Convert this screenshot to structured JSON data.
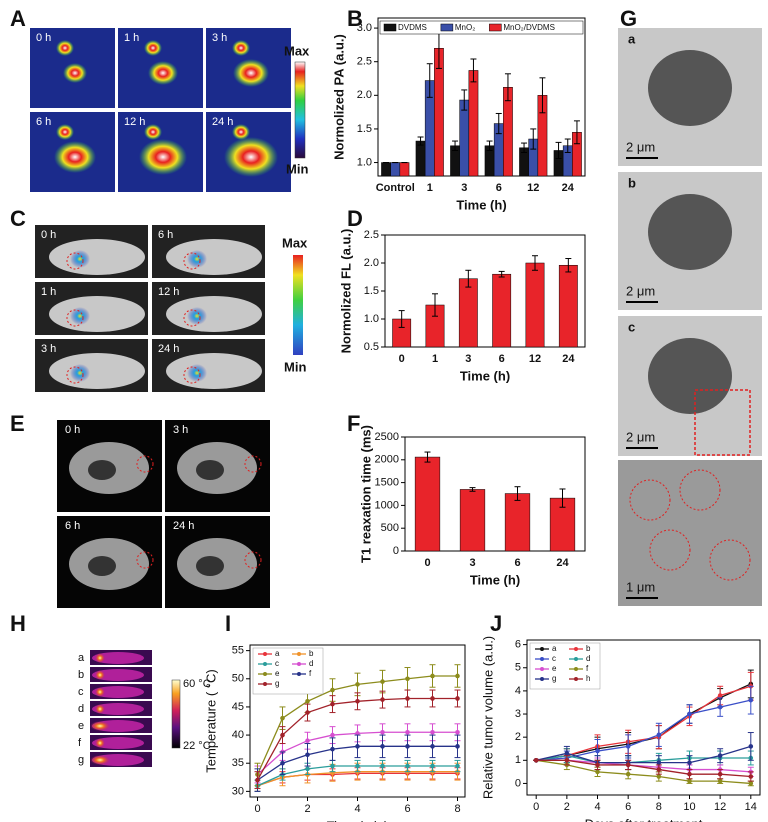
{
  "chart_data": [
    {
      "type": "bar",
      "categories": [
        "Control",
        "1",
        "3",
        "6",
        "12",
        "24"
      ],
      "series": [
        {
          "name": "DVDMS",
          "color": "#111111",
          "values": [
            1,
            1.32,
            1.25,
            1.25,
            1.22,
            1.18
          ],
          "errors": [
            0,
            0.06,
            0.07,
            0.07,
            0.07,
            0.12
          ]
        },
        {
          "name": "MnO₂",
          "color": "#3a4fa8",
          "values": [
            1,
            2.22,
            1.93,
            1.58,
            1.35,
            1.25
          ],
          "errors": [
            0,
            0.25,
            0.15,
            0.15,
            0.15,
            0.1
          ]
        },
        {
          "name": "MnO₂/DVDMS",
          "color": "#e8242a",
          "values": [
            1,
            2.7,
            2.37,
            2.12,
            2.0,
            1.45
          ],
          "errors": [
            0,
            0.3,
            0.17,
            0.2,
            0.26,
            0.17
          ]
        }
      ],
      "ylim": [
        0.8,
        3.15
      ],
      "yticks": [
        {
          "value": 1,
          "label": "1.0"
        },
        1.5,
        {
          "value": 2,
          "label": "2.0"
        },
        2.5,
        {
          "value": 3,
          "label": "3.0"
        }
      ],
      "xlabel": "Time (h)",
      "ylabel": "Normolized PA (a.u.)",
      "legend": "top"
    },
    {
      "type": "bar",
      "categories": [
        "0",
        "1",
        "3",
        "6",
        "12",
        "24"
      ],
      "series": [
        {
          "color": "#e8242a",
          "values": [
            1.0,
            1.25,
            1.72,
            1.8,
            2.0,
            1.96
          ],
          "errors": [
            0.15,
            0.2,
            0.15,
            0.05,
            0.13,
            0.12
          ]
        }
      ],
      "ylim": [
        0.5,
        2.5
      ],
      "yticks": [
        0.5,
        {
          "value": 1,
          "label": "1.0"
        },
        1.5,
        {
          "value": 2,
          "label": "2.0"
        },
        2.5
      ],
      "xlabel": "Time (h)",
      "ylabel": "Normolized FL (a.u.)"
    },
    {
      "type": "bar",
      "categories": [
        "0",
        "3",
        "6",
        "24"
      ],
      "series": [
        {
          "color": "#e8242a",
          "values": [
            2060,
            1350,
            1260,
            1160
          ],
          "errors": [
            110,
            40,
            150,
            200
          ]
        }
      ],
      "ylim": [
        0,
        2500
      ],
      "yticks": [
        0,
        500,
        1000,
        1500,
        2000,
        2500
      ],
      "xlabel": "Time (h)",
      "ylabel": "T1 reaxation time (ms)"
    },
    {
      "type": "line",
      "x": [
        0,
        1,
        2,
        3,
        4,
        5,
        6,
        7,
        8
      ],
      "xlim": [
        -0.3,
        8.3
      ],
      "xticks": [
        0,
        2,
        4,
        6,
        8
      ],
      "ylim": [
        29,
        56
      ],
      "yticks": [
        30,
        35,
        40,
        45,
        50,
        55
      ],
      "xlabel": "Time (min)",
      "ylabel": "Temperature ( °C)",
      "legend": "upper left",
      "series": [
        {
          "name": "a",
          "color": "#e8333a",
          "values": [
            31,
            32.5,
            33,
            33,
            33.2,
            33.2,
            33.2,
            33.2,
            33.2
          ],
          "errors": [
            1,
            1,
            1,
            1,
            1,
            1,
            1,
            1,
            1
          ]
        },
        {
          "name": "b",
          "color": "#f0932b",
          "values": [
            31,
            32.5,
            33,
            33.3,
            33.5,
            33.5,
            33.5,
            33.5,
            33.5
          ],
          "errors": [
            1,
            1.5,
            1.5,
            1.5,
            1.5,
            1.5,
            1.5,
            1.5,
            1.5
          ]
        },
        {
          "name": "c",
          "color": "#2a9d9b",
          "values": [
            31,
            33,
            34,
            34.5,
            34.5,
            34.5,
            34.5,
            34.5,
            34.5
          ],
          "errors": [
            1,
            1,
            1,
            1,
            1,
            1,
            1,
            1,
            1
          ]
        },
        {
          "name": "d",
          "color": "#d64fd0",
          "values": [
            33,
            37,
            39,
            40,
            40.3,
            40.5,
            40.5,
            40.5,
            40.5
          ],
          "errors": [
            1.5,
            1.5,
            1.5,
            1.5,
            1.5,
            1.5,
            1.5,
            1.5,
            1.5
          ]
        },
        {
          "name": "e",
          "color": "#8c8c1c",
          "values": [
            33,
            43,
            46,
            48,
            49,
            49.5,
            50,
            50.5,
            50.5
          ],
          "errors": [
            2,
            2,
            2,
            2,
            2,
            2,
            2,
            2,
            2
          ]
        },
        {
          "name": "f",
          "color": "#27338a",
          "values": [
            32,
            35,
            36.5,
            37.5,
            38,
            38,
            38,
            38,
            38
          ],
          "errors": [
            2,
            2,
            2,
            2,
            2,
            2,
            2,
            2,
            2
          ]
        },
        {
          "name": "g",
          "color": "#a2222a",
          "values": [
            32,
            40,
            44,
            45.5,
            46,
            46.3,
            46.5,
            46.5,
            46.5
          ],
          "errors": [
            1.5,
            1.5,
            1.5,
            1.5,
            1.5,
            1.5,
            1.5,
            1.5,
            1.5
          ]
        }
      ]
    },
    {
      "type": "line",
      "x": [
        0,
        2,
        4,
        6,
        8,
        10,
        12,
        14
      ],
      "xlim": [
        -0.6,
        14.6
      ],
      "xticks": [
        0,
        2,
        4,
        6,
        8,
        10,
        12,
        14
      ],
      "ylim": [
        -0.5,
        6.2
      ],
      "yticks": [
        0,
        1,
        2,
        3,
        4,
        5,
        6
      ],
      "xlabel": "Days after treatment",
      "ylabel": "Relative tumor volume (a.u.)",
      "legend": "upper left",
      "series": [
        {
          "name": "a",
          "color": "#111111",
          "values": [
            1,
            1.2,
            1.5,
            1.7,
            2.0,
            3.0,
            3.7,
            4.3
          ],
          "errors": [
            0,
            0.3,
            0.5,
            0.5,
            0.5,
            0.4,
            0.4,
            0.6
          ]
        },
        {
          "name": "b",
          "color": "#e8333a",
          "values": [
            1,
            1.2,
            1.6,
            1.8,
            2.0,
            2.9,
            3.8,
            4.2
          ],
          "errors": [
            0,
            0.3,
            0.5,
            0.5,
            0.5,
            0.4,
            0.4,
            0.6
          ]
        },
        {
          "name": "c",
          "color": "#3a4fc8",
          "values": [
            1,
            1.1,
            1.4,
            1.6,
            2.1,
            3.0,
            3.3,
            3.6
          ],
          "errors": [
            0,
            0.3,
            0.5,
            0.5,
            0.5,
            0.4,
            0.4,
            0.6
          ]
        },
        {
          "name": "d",
          "color": "#2a9d9b",
          "values": [
            1,
            1.2,
            0.9,
            0.9,
            1.0,
            1.1,
            1.1,
            1.1
          ],
          "errors": [
            0,
            0.3,
            0.3,
            0.3,
            0.3,
            0.3,
            0.3,
            0.3
          ]
        },
        {
          "name": "e",
          "color": "#d64fd0",
          "values": [
            1,
            1.0,
            0.9,
            0.8,
            0.7,
            0.6,
            0.6,
            0.5
          ],
          "errors": [
            0,
            0.2,
            0.2,
            0.2,
            0.2,
            0.2,
            0.2,
            0.2
          ]
        },
        {
          "name": "f",
          "color": "#8c8c1c",
          "values": [
            1,
            0.8,
            0.5,
            0.4,
            0.3,
            0.1,
            0.1,
            0.0
          ],
          "errors": [
            0,
            0.2,
            0.2,
            0.2,
            0.2,
            0.1,
            0.1,
            0.1
          ]
        },
        {
          "name": "g",
          "color": "#27338a",
          "values": [
            1,
            1.3,
            0.9,
            0.9,
            0.9,
            0.9,
            1.2,
            1.6
          ],
          "errors": [
            0,
            0.3,
            0.3,
            0.3,
            0.3,
            0.3,
            0.3,
            0.6
          ]
        },
        {
          "name": "h",
          "color": "#a2222a",
          "values": [
            1,
            1.0,
            0.8,
            0.8,
            0.6,
            0.4,
            0.4,
            0.3
          ],
          "errors": [
            0,
            0.2,
            0.2,
            0.2,
            0.2,
            0.2,
            0.2,
            0.2
          ]
        }
      ]
    }
  ],
  "panels": {
    "letters": [
      "A",
      "B",
      "C",
      "D",
      "E",
      "F",
      "G",
      "H",
      "I",
      "J"
    ],
    "A": {
      "times": [
        "0 h",
        "1 h",
        "3 h",
        "6 h",
        "12 h",
        "24 h"
      ],
      "max": "Max",
      "min": "Min"
    },
    "C": {
      "times": [
        "0 h",
        "6 h",
        "1 h",
        "12 h",
        "3 h",
        "24 h"
      ],
      "max": "Max",
      "min": "Min"
    },
    "E": {
      "times": [
        "0 h",
        "3 h",
        "6 h",
        "24 h"
      ]
    },
    "G": {
      "labels": [
        "a",
        "b",
        "c"
      ],
      "scales": [
        "2 μm",
        "2 μm",
        "2 μm",
        "1 μm"
      ]
    },
    "H": {
      "rows": [
        "a",
        "b",
        "c",
        "d",
        "e",
        "f",
        "g"
      ],
      "high": "60 °C",
      "low": "22 °C"
    }
  }
}
